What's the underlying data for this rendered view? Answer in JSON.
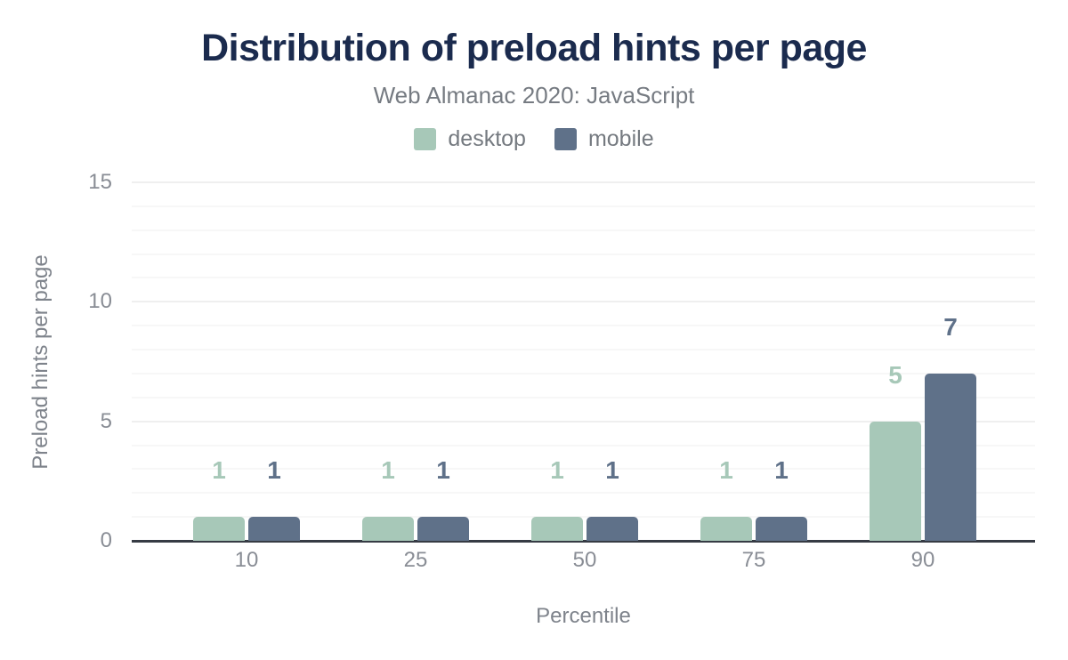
{
  "header": {
    "title": "Distribution of preload hints per page",
    "subtitle": "Web Almanac 2020: JavaScript"
  },
  "chart_data": {
    "type": "bar",
    "title": "Distribution of preload hints per page",
    "subtitle": "Web Almanac 2020: JavaScript",
    "categories": [
      "10",
      "25",
      "50",
      "75",
      "90"
    ],
    "series": [
      {
        "name": "desktop",
        "color": "#a7c8b8",
        "values": [
          1,
          1,
          1,
          1,
          5
        ]
      },
      {
        "name": "mobile",
        "color": "#5f7189",
        "values": [
          1,
          1,
          1,
          1,
          7
        ]
      }
    ],
    "xlabel": "Percentile",
    "ylabel": "Preload hints per page",
    "ylim": [
      0,
      15
    ],
    "yticks": [
      0,
      5,
      10,
      15
    ],
    "minor_grid_step": 1,
    "grid": true,
    "legend_position": "top",
    "value_labels": true
  },
  "colors": {
    "title": "#1b2b4e",
    "subtitle": "#767b82",
    "tick_label": "#898d95",
    "axis_line": "#363b44",
    "grid_minor": "#f7f7f7",
    "grid_major": "#efefef"
  }
}
